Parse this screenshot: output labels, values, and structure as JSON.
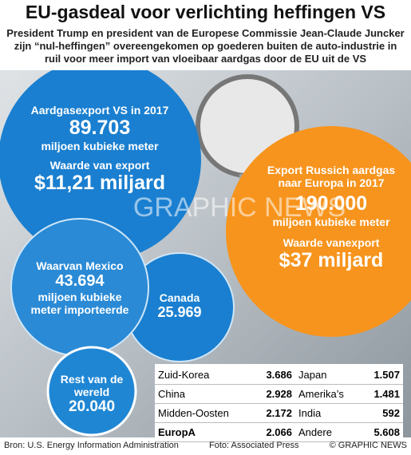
{
  "header": {
    "title": "EU-gasdeal voor verlichting heffingen VS",
    "subtitle": "President Trump en president van de Europese Commissie Jean-Claude Juncker zijn “nul-heffingen” overeengekomen op goederen buiten de auto-industrie in ruil voor meer import van vloeibaar aardgas door de EU uit de VS"
  },
  "us": {
    "label": "Aardgasexport VS in 2017",
    "value": "89.703",
    "unit": "miljoen kubieke meter",
    "value_label": "Waarde van export",
    "export_value": "$11,21 miljard"
  },
  "mexico": {
    "label": "Waarvan Mexico",
    "value": "43.694",
    "unit": "miljoen kubieke meter importeerde"
  },
  "canada": {
    "label": "Canada",
    "value": "25.969"
  },
  "rest": {
    "label": "Rest van de wereld",
    "value": "20.040"
  },
  "russia": {
    "label": "Export Russich aardgas naar Europa in 2017",
    "value": "190.000",
    "unit": "miljoen kubieke meter",
    "value_label": "Waarde vanexport",
    "export_value": "$37 miljard"
  },
  "table": {
    "rows": [
      [
        "Zuid-Korea",
        "3.686",
        "Japan",
        "1.507"
      ],
      [
        "China",
        "2.928",
        "Amerika’s",
        "1.481"
      ],
      [
        "Midden-Oosten",
        "2.172",
        "India",
        "592"
      ],
      [
        "EuropA",
        "2.066",
        "Andere",
        "5.608"
      ]
    ]
  },
  "watermark": "GRAPHIC NEWS",
  "footer": {
    "source": "Bron: U.S. Energy Information Administration",
    "photo": "Foto: Associated Press",
    "copyright": "© GRAPHIC NEWS"
  }
}
